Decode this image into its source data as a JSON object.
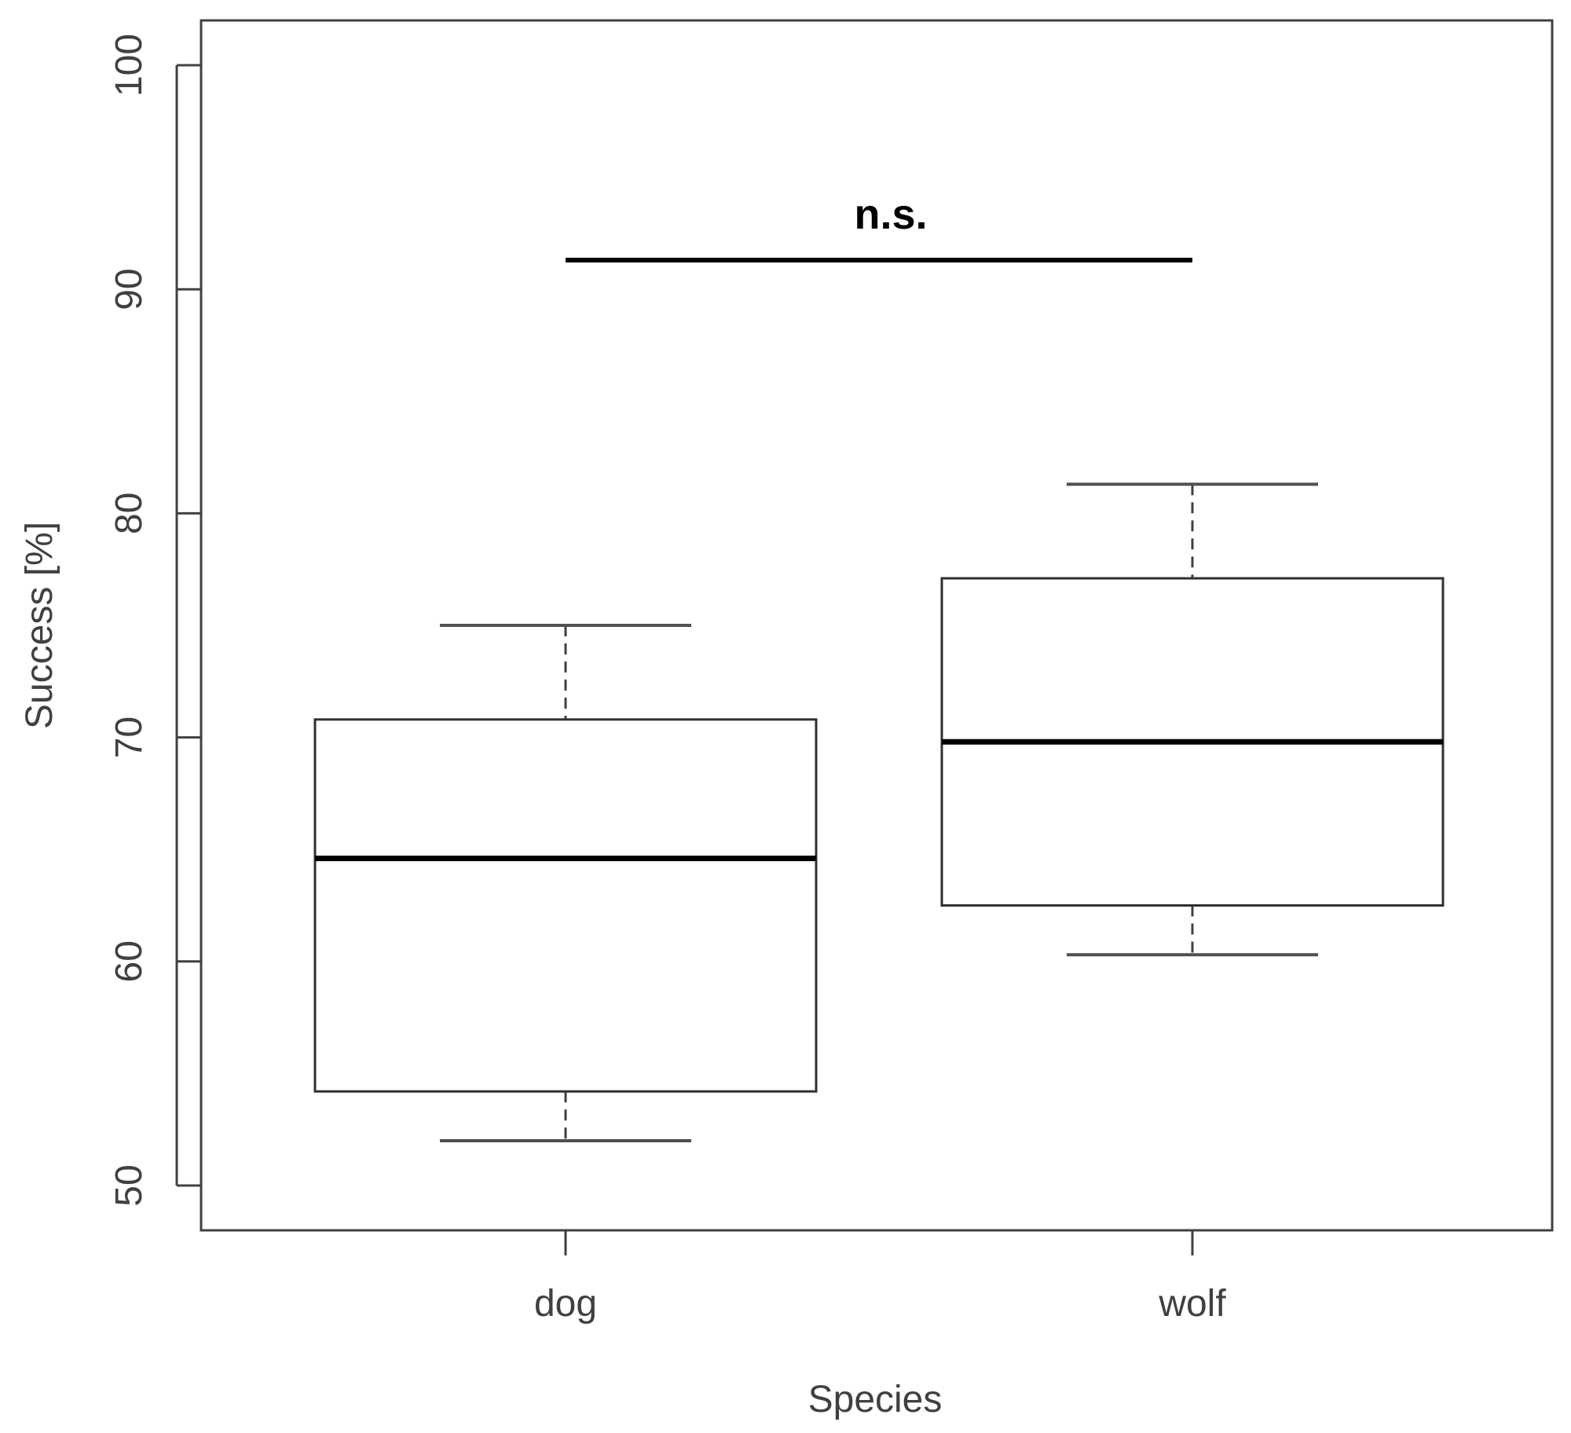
{
  "chart_data": {
    "type": "boxplot",
    "xlabel": "Species",
    "ylabel": "Success [%]",
    "categories": [
      "dog",
      "wolf"
    ],
    "ylim": [
      48,
      102
    ],
    "yticks": [
      50,
      60,
      70,
      80,
      90,
      100
    ],
    "boxes": [
      {
        "category": "dog",
        "whisker_low": 52,
        "q1": 54.2,
        "median": 64.6,
        "q3": 70.8,
        "whisker_high": 75
      },
      {
        "category": "wolf",
        "whisker_low": 60.3,
        "q1": 62.5,
        "median": 69.8,
        "q3": 77.1,
        "whisker_high": 81.3
      }
    ],
    "annotations": [
      {
        "text": "n.s.",
        "from": "dog",
        "to": "wolf",
        "y": 91.3
      }
    ],
    "grid": false,
    "legend": "none"
  }
}
